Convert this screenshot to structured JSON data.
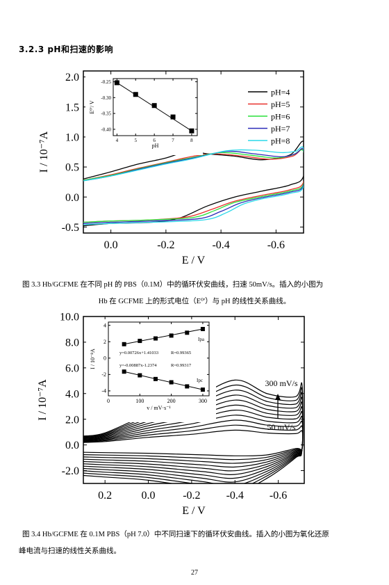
{
  "section_heading": "3.2.3 pH和扫速的影响",
  "figure_3_3": {
    "caption_line1": "图 3.3 Hb/GCFME 在不同 pH 的 PBS（0.1M）中的循环伏安曲线，扫速 50mV/s。插入的小图为",
    "caption_line2": "Hb 在 GCFME 上的形式电位（E⁰'）与 pH 的线性关系曲线。"
  },
  "figure_3_4": {
    "caption_line1": "图 3.4 Hb/GCFME 在 0.1M PBS（pH 7.0）中不同扫速下的循环伏安曲线。插入的小图为氧化还原",
    "caption_line2": "峰电流与扫速的线性关系曲线。"
  },
  "page_number": "27",
  "chart_data": [
    {
      "type": "line",
      "xlabel": "E / V",
      "ylabel": "I / 10⁻⁷A",
      "xlim": [
        0.1,
        -0.7
      ],
      "ylim": [
        -0.6,
        2.1
      ],
      "x_ticks": [
        "0.0",
        "-0.2",
        "-0.4",
        "-0.6"
      ],
      "y_ticks": [
        "-0.5",
        "0.0",
        "0.5",
        "1.0",
        "1.5",
        "2.0"
      ],
      "legend_position": "top-right",
      "series": [
        {
          "name": "pH=4",
          "color": "#000000",
          "forward": [
            [
              0.1,
              0.3
            ],
            [
              0.0,
              0.42
            ],
            [
              -0.1,
              0.55
            ],
            [
              -0.2,
              0.65
            ],
            [
              -0.28,
              0.76
            ],
            [
              -0.35,
              0.72
            ],
            [
              -0.45,
              0.68
            ],
            [
              -0.55,
              0.62
            ],
            [
              -0.65,
              0.7
            ],
            [
              -0.7,
              0.92
            ]
          ],
          "reverse": [
            [
              -0.7,
              0.35
            ],
            [
              -0.65,
              0.2
            ],
            [
              -0.55,
              0.1
            ],
            [
              -0.45,
              0.0
            ],
            [
              -0.35,
              -0.15
            ],
            [
              -0.25,
              -0.35
            ],
            [
              -0.15,
              -0.42
            ],
            [
              0.0,
              -0.44
            ],
            [
              0.1,
              -0.48
            ]
          ]
        },
        {
          "name": "pH=5",
          "color": "#e8302a",
          "forward": [
            [
              0.1,
              0.28
            ],
            [
              0.0,
              0.37
            ],
            [
              -0.1,
              0.48
            ],
            [
              -0.2,
              0.58
            ],
            [
              -0.3,
              0.68
            ],
            [
              -0.38,
              0.72
            ],
            [
              -0.48,
              0.68
            ],
            [
              -0.58,
              0.63
            ],
            [
              -0.66,
              0.68
            ],
            [
              -0.7,
              0.78
            ]
          ],
          "reverse": [
            [
              -0.7,
              0.25
            ],
            [
              -0.65,
              0.12
            ],
            [
              -0.55,
              0.03
            ],
            [
              -0.45,
              -0.07
            ],
            [
              -0.37,
              -0.2
            ],
            [
              -0.28,
              -0.33
            ],
            [
              -0.15,
              -0.38
            ],
            [
              0.0,
              -0.4
            ],
            [
              0.1,
              -0.42
            ]
          ]
        },
        {
          "name": "pH=6",
          "color": "#28e03a",
          "forward": [
            [
              0.1,
              0.28
            ],
            [
              0.0,
              0.36
            ],
            [
              -0.1,
              0.47
            ],
            [
              -0.2,
              0.57
            ],
            [
              -0.3,
              0.66
            ],
            [
              -0.4,
              0.74
            ],
            [
              -0.5,
              0.7
            ],
            [
              -0.6,
              0.65
            ],
            [
              -0.66,
              0.7
            ],
            [
              -0.7,
              0.76
            ]
          ],
          "reverse": [
            [
              -0.7,
              0.22
            ],
            [
              -0.65,
              0.1
            ],
            [
              -0.55,
              0.01
            ],
            [
              -0.45,
              -0.09
            ],
            [
              -0.38,
              -0.22
            ],
            [
              -0.3,
              -0.34
            ],
            [
              -0.15,
              -0.38
            ],
            [
              0.0,
              -0.4
            ],
            [
              0.1,
              -0.42
            ]
          ]
        },
        {
          "name": "pH=7",
          "color": "#2a2ab8",
          "forward": [
            [
              0.1,
              0.27
            ],
            [
              0.0,
              0.35
            ],
            [
              -0.1,
              0.46
            ],
            [
              -0.2,
              0.56
            ],
            [
              -0.3,
              0.65
            ],
            [
              -0.42,
              0.76
            ],
            [
              -0.52,
              0.72
            ],
            [
              -0.62,
              0.67
            ],
            [
              -0.67,
              0.72
            ],
            [
              -0.7,
              0.78
            ]
          ],
          "reverse": [
            [
              -0.7,
              0.2
            ],
            [
              -0.65,
              0.08
            ],
            [
              -0.55,
              -0.01
            ],
            [
              -0.47,
              -0.1
            ],
            [
              -0.4,
              -0.24
            ],
            [
              -0.32,
              -0.36
            ],
            [
              -0.15,
              -0.4
            ],
            [
              0.0,
              -0.42
            ],
            [
              0.1,
              -0.44
            ]
          ]
        },
        {
          "name": "pH=8",
          "color": "#2ad8e8",
          "forward": [
            [
              0.1,
              0.27
            ],
            [
              0.0,
              0.35
            ],
            [
              -0.1,
              0.45
            ],
            [
              -0.2,
              0.55
            ],
            [
              -0.3,
              0.64
            ],
            [
              -0.42,
              0.77
            ],
            [
              -0.52,
              0.78
            ],
            [
              -0.62,
              0.74
            ],
            [
              -0.67,
              0.76
            ],
            [
              -0.7,
              0.8
            ]
          ],
          "reverse": [
            [
              -0.7,
              0.18
            ],
            [
              -0.65,
              0.06
            ],
            [
              -0.55,
              -0.03
            ],
            [
              -0.48,
              -0.12
            ],
            [
              -0.42,
              -0.26
            ],
            [
              -0.34,
              -0.38
            ],
            [
              -0.15,
              -0.42
            ],
            [
              0.0,
              -0.44
            ],
            [
              0.1,
              -0.46
            ]
          ]
        }
      ],
      "inset": {
        "type": "scatter",
        "xlabel": "pH",
        "ylabel": "E⁰'/ V",
        "xlim": [
          3.8,
          8.3
        ],
        "ylim": [
          -0.42,
          -0.24
        ],
        "x_ticks": [
          "4",
          "5",
          "6",
          "7",
          "8"
        ],
        "y_ticks": [
          "-0.25",
          "-0.30",
          "-0.35",
          "-0.40"
        ],
        "points": [
          [
            4,
            -0.253
          ],
          [
            5,
            -0.29
          ],
          [
            6,
            -0.325
          ],
          [
            7,
            -0.361
          ],
          [
            8,
            -0.405
          ]
        ],
        "fit_line": [
          [
            4,
            -0.253
          ],
          [
            8,
            -0.405
          ]
        ]
      }
    },
    {
      "type": "line",
      "xlabel": "E / V",
      "ylabel": "I / 10⁻⁷A",
      "xlim": [
        0.3,
        -0.72
      ],
      "ylim": [
        -3.0,
        10.0
      ],
      "x_ticks": [
        "0.2",
        "0.0",
        "-0.2",
        "-0.4",
        "-0.6"
      ],
      "y_ticks": [
        "-2.0",
        "0.0",
        "2.0",
        "4.0",
        "6.0",
        "8.0",
        "10.0"
      ],
      "annotations": [
        "300 mV/s",
        "50 mV/s"
      ],
      "scan_rates_mV_s": [
        50,
        75,
        100,
        125,
        150,
        175,
        200,
        225,
        250,
        275,
        300
      ],
      "oxidation_peak_current": [
        0.8,
        1.1,
        1.4,
        1.7,
        2.0,
        2.3,
        2.6,
        2.9,
        3.2,
        3.5,
        3.8
      ],
      "reduction_peak_current": [
        -0.5,
        -0.7,
        -0.9,
        -1.1,
        -1.3,
        -1.5,
        -1.7,
        -1.9,
        -2.1,
        -2.3,
        -2.5
      ],
      "inset": {
        "type": "scatter",
        "xlabel": "v / mV·s⁻¹",
        "ylabel": "I / 10⁻⁸A",
        "xlim": [
          0,
          320
        ],
        "ylim": [
          -4.6,
          4.4
        ],
        "x_ticks": [
          "0",
          "100",
          "200",
          "300"
        ],
        "y_ticks": [
          "4",
          "2",
          "0",
          "-2",
          "-4"
        ],
        "series": [
          {
            "name": "Ipa",
            "equation": "y=0.00726x+1.41033",
            "R": "R=0.99365",
            "points": [
              [
                50,
                1.7
              ],
              [
                100,
                2.1
              ],
              [
                150,
                2.4
              ],
              [
                200,
                2.75
              ],
              [
                250,
                3.1
              ],
              [
                300,
                3.55
              ]
            ]
          },
          {
            "name": "Ipc",
            "equation": "y=-0.00887x-1.2374",
            "R": "R=0.99317",
            "points": [
              [
                50,
                -1.65
              ],
              [
                100,
                -2.1
              ],
              [
                150,
                -2.55
              ],
              [
                200,
                -2.95
              ],
              [
                250,
                -3.45
              ],
              [
                300,
                -3.85
              ]
            ]
          }
        ]
      }
    }
  ]
}
